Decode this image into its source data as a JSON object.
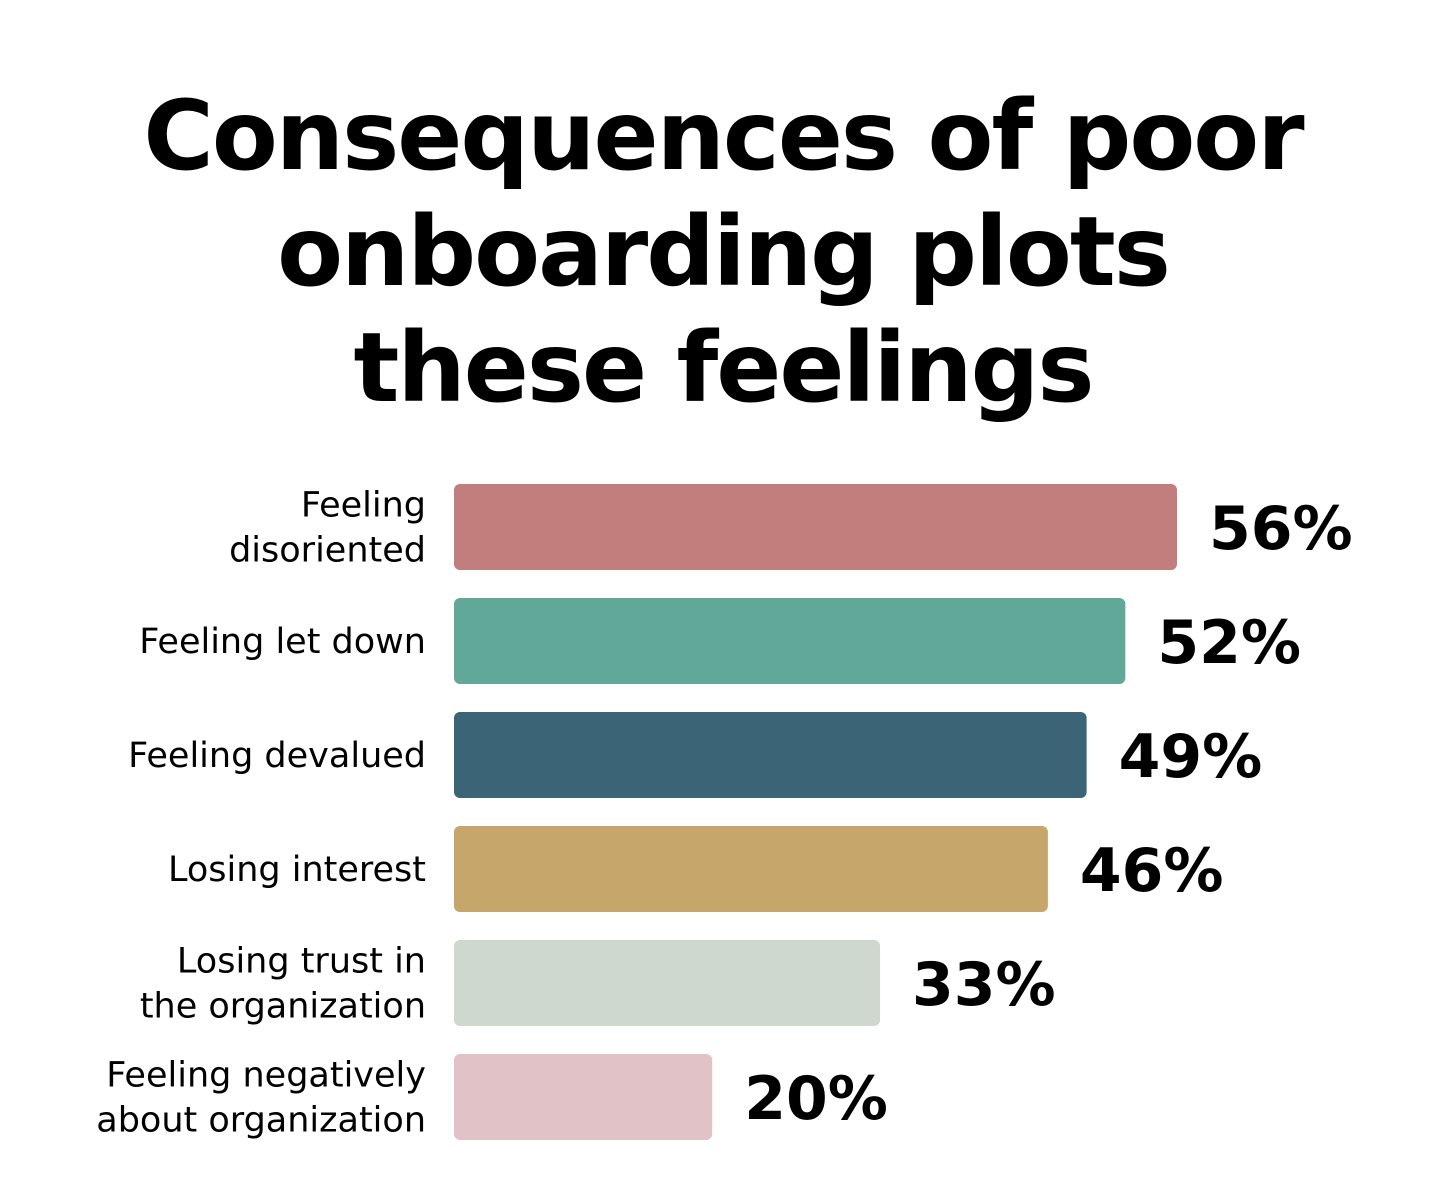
{
  "title": "Consequences of poor onboarding plots these feelings",
  "title_lines": [
    "Consequences of poor",
    "onboarding plots",
    "these feelings"
  ],
  "chart_data": {
    "type": "bar",
    "orientation": "horizontal",
    "title": "Consequences of poor onboarding plots these feelings",
    "xlabel": "",
    "ylabel": "",
    "xlim": [
      0,
      100
    ],
    "grid": false,
    "legend": "none",
    "categories": [
      [
        "Feeling",
        "disoriented"
      ],
      [
        "Feeling let down"
      ],
      [
        "Feeling devalued"
      ],
      [
        "Losing interest"
      ],
      [
        "Losing trust in",
        "the organization"
      ],
      [
        "Feeling negatively",
        "about organization"
      ]
    ],
    "values": [
      56,
      52,
      49,
      46,
      33,
      20
    ],
    "value_labels": [
      "56%",
      "52%",
      "49%",
      "46%",
      "33%",
      "20%"
    ],
    "colors": [
      "#C17E7D",
      "#62A899",
      "#3C6477",
      "#C6A66B",
      "#CFD8CF",
      "#E1C3C7"
    ]
  }
}
